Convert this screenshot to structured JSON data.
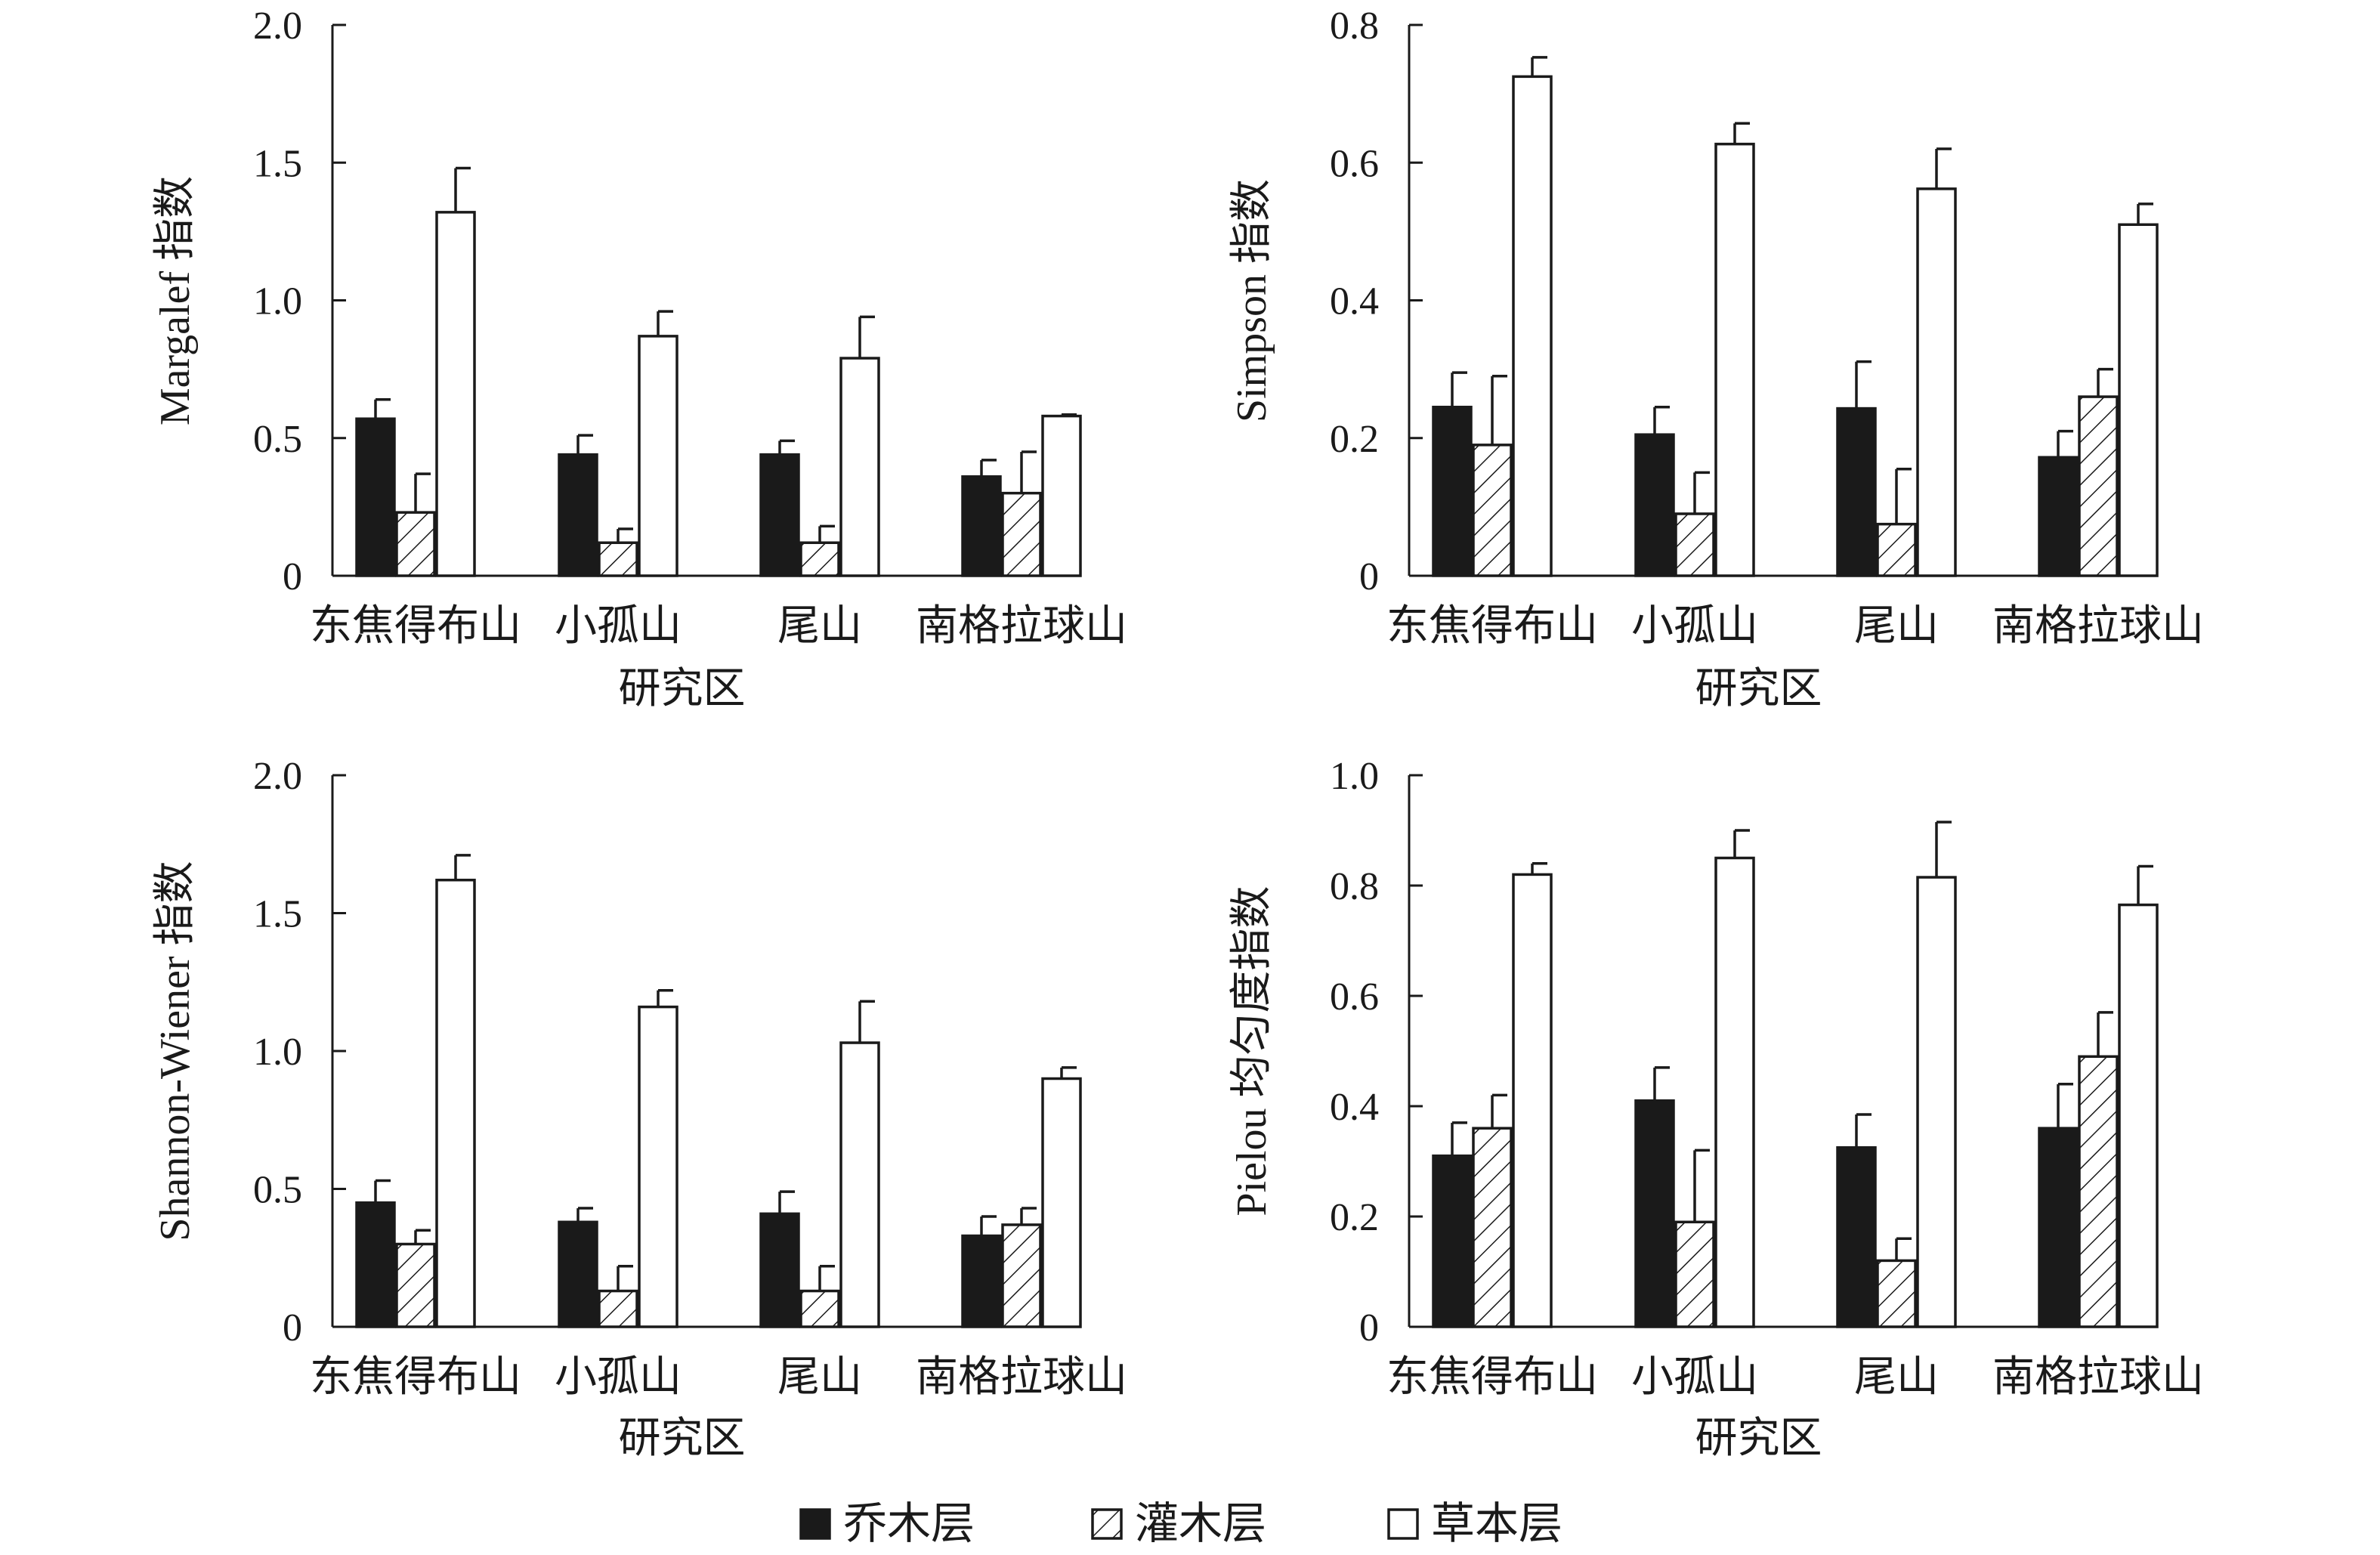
{
  "colors": {
    "ink": "#1a1a1a",
    "tree_fill": "#1a1a1a",
    "shrub_fill": "hatched",
    "herb_fill": "#ffffff"
  },
  "legend": [
    {
      "name": "乔木层",
      "style": "solid"
    },
    {
      "name": "灌木层",
      "style": "hatch"
    },
    {
      "name": "草本层",
      "style": "open"
    }
  ],
  "chart_data": [
    {
      "type": "bar",
      "panel": "top-left",
      "ylabel": "Margalef 指数",
      "xlabel": "研究区",
      "categories": [
        "东焦得布山",
        "小孤山",
        "尾山",
        "南格拉球山"
      ],
      "ylim": [
        0,
        2.0
      ],
      "yticks": [
        0,
        0.5,
        1.0,
        1.5,
        2.0
      ],
      "ytick_labels": [
        "0",
        "0.5",
        "1.0",
        "1.5",
        "2.0"
      ],
      "series": [
        {
          "name": "乔木层",
          "values": [
            0.57,
            0.44,
            0.44,
            0.36
          ],
          "errors": [
            0.07,
            0.07,
            0.05,
            0.06
          ]
        },
        {
          "name": "灌木层",
          "values": [
            0.23,
            0.12,
            0.12,
            0.3
          ],
          "errors": [
            0.14,
            0.05,
            0.06,
            0.15
          ]
        },
        {
          "name": "草本层",
          "values": [
            1.32,
            0.87,
            0.79,
            0.58
          ],
          "errors": [
            0.16,
            0.09,
            0.15,
            0.005
          ]
        }
      ]
    },
    {
      "type": "bar",
      "panel": "top-right",
      "ylabel": "Simpson 指数",
      "xlabel": "研究区",
      "categories": [
        "东焦得布山",
        "小孤山",
        "尾山",
        "南格拉球山"
      ],
      "ylim": [
        0,
        0.8
      ],
      "yticks": [
        0,
        0.2,
        0.4,
        0.6,
        0.8
      ],
      "ytick_labels": [
        "0",
        "0.2",
        "0.4",
        "0.6",
        "0.8"
      ],
      "series": [
        {
          "name": "乔木层",
          "values": [
            0.245,
            0.205,
            0.243,
            0.172
          ],
          "errors": [
            0.05,
            0.04,
            0.068,
            0.038
          ]
        },
        {
          "name": "灌木层",
          "values": [
            0.19,
            0.09,
            0.075,
            0.26
          ],
          "errors": [
            0.1,
            0.06,
            0.08,
            0.04
          ]
        },
        {
          "name": "草本层",
          "values": [
            0.725,
            0.627,
            0.562,
            0.51
          ],
          "errors": [
            0.028,
            0.03,
            0.058,
            0.03
          ]
        }
      ]
    },
    {
      "type": "bar",
      "panel": "bottom-left",
      "ylabel": "Shannon-Wiener 指数",
      "xlabel": "研究区",
      "categories": [
        "东焦得布山",
        "小孤山",
        "尾山",
        "南格拉球山"
      ],
      "ylim": [
        0,
        2.0
      ],
      "yticks": [
        0,
        0.5,
        1.0,
        1.5,
        2.0
      ],
      "ytick_labels": [
        "0",
        "0.5",
        "1.0",
        "1.5",
        "2.0"
      ],
      "series": [
        {
          "name": "乔木层",
          "values": [
            0.45,
            0.38,
            0.41,
            0.33
          ],
          "errors": [
            0.08,
            0.05,
            0.08,
            0.07
          ]
        },
        {
          "name": "灌木层",
          "values": [
            0.3,
            0.13,
            0.13,
            0.37
          ],
          "errors": [
            0.05,
            0.09,
            0.09,
            0.06
          ]
        },
        {
          "name": "草本层",
          "values": [
            1.62,
            1.16,
            1.03,
            0.9
          ],
          "errors": [
            0.09,
            0.06,
            0.15,
            0.04
          ]
        }
      ]
    },
    {
      "type": "bar",
      "panel": "bottom-right",
      "ylabel": "Pielou 均匀度指数",
      "xlabel": "研究区",
      "categories": [
        "东焦得布山",
        "小孤山",
        "尾山",
        "南格拉球山"
      ],
      "ylim": [
        0,
        1.0
      ],
      "yticks": [
        0,
        0.2,
        0.4,
        0.6,
        0.8,
        1.0
      ],
      "ytick_labels": [
        "0",
        "0.2",
        "0.4",
        "0.6",
        "0.8",
        "1.0"
      ],
      "series": [
        {
          "name": "乔木层",
          "values": [
            0.31,
            0.41,
            0.325,
            0.36
          ],
          "errors": [
            0.06,
            0.06,
            0.06,
            0.08
          ]
        },
        {
          "name": "灌木层",
          "values": [
            0.36,
            0.19,
            0.12,
            0.49
          ],
          "errors": [
            0.06,
            0.13,
            0.04,
            0.08
          ]
        },
        {
          "name": "草本层",
          "values": [
            0.82,
            0.85,
            0.815,
            0.765
          ],
          "errors": [
            0.02,
            0.05,
            0.1,
            0.07
          ]
        }
      ]
    }
  ]
}
